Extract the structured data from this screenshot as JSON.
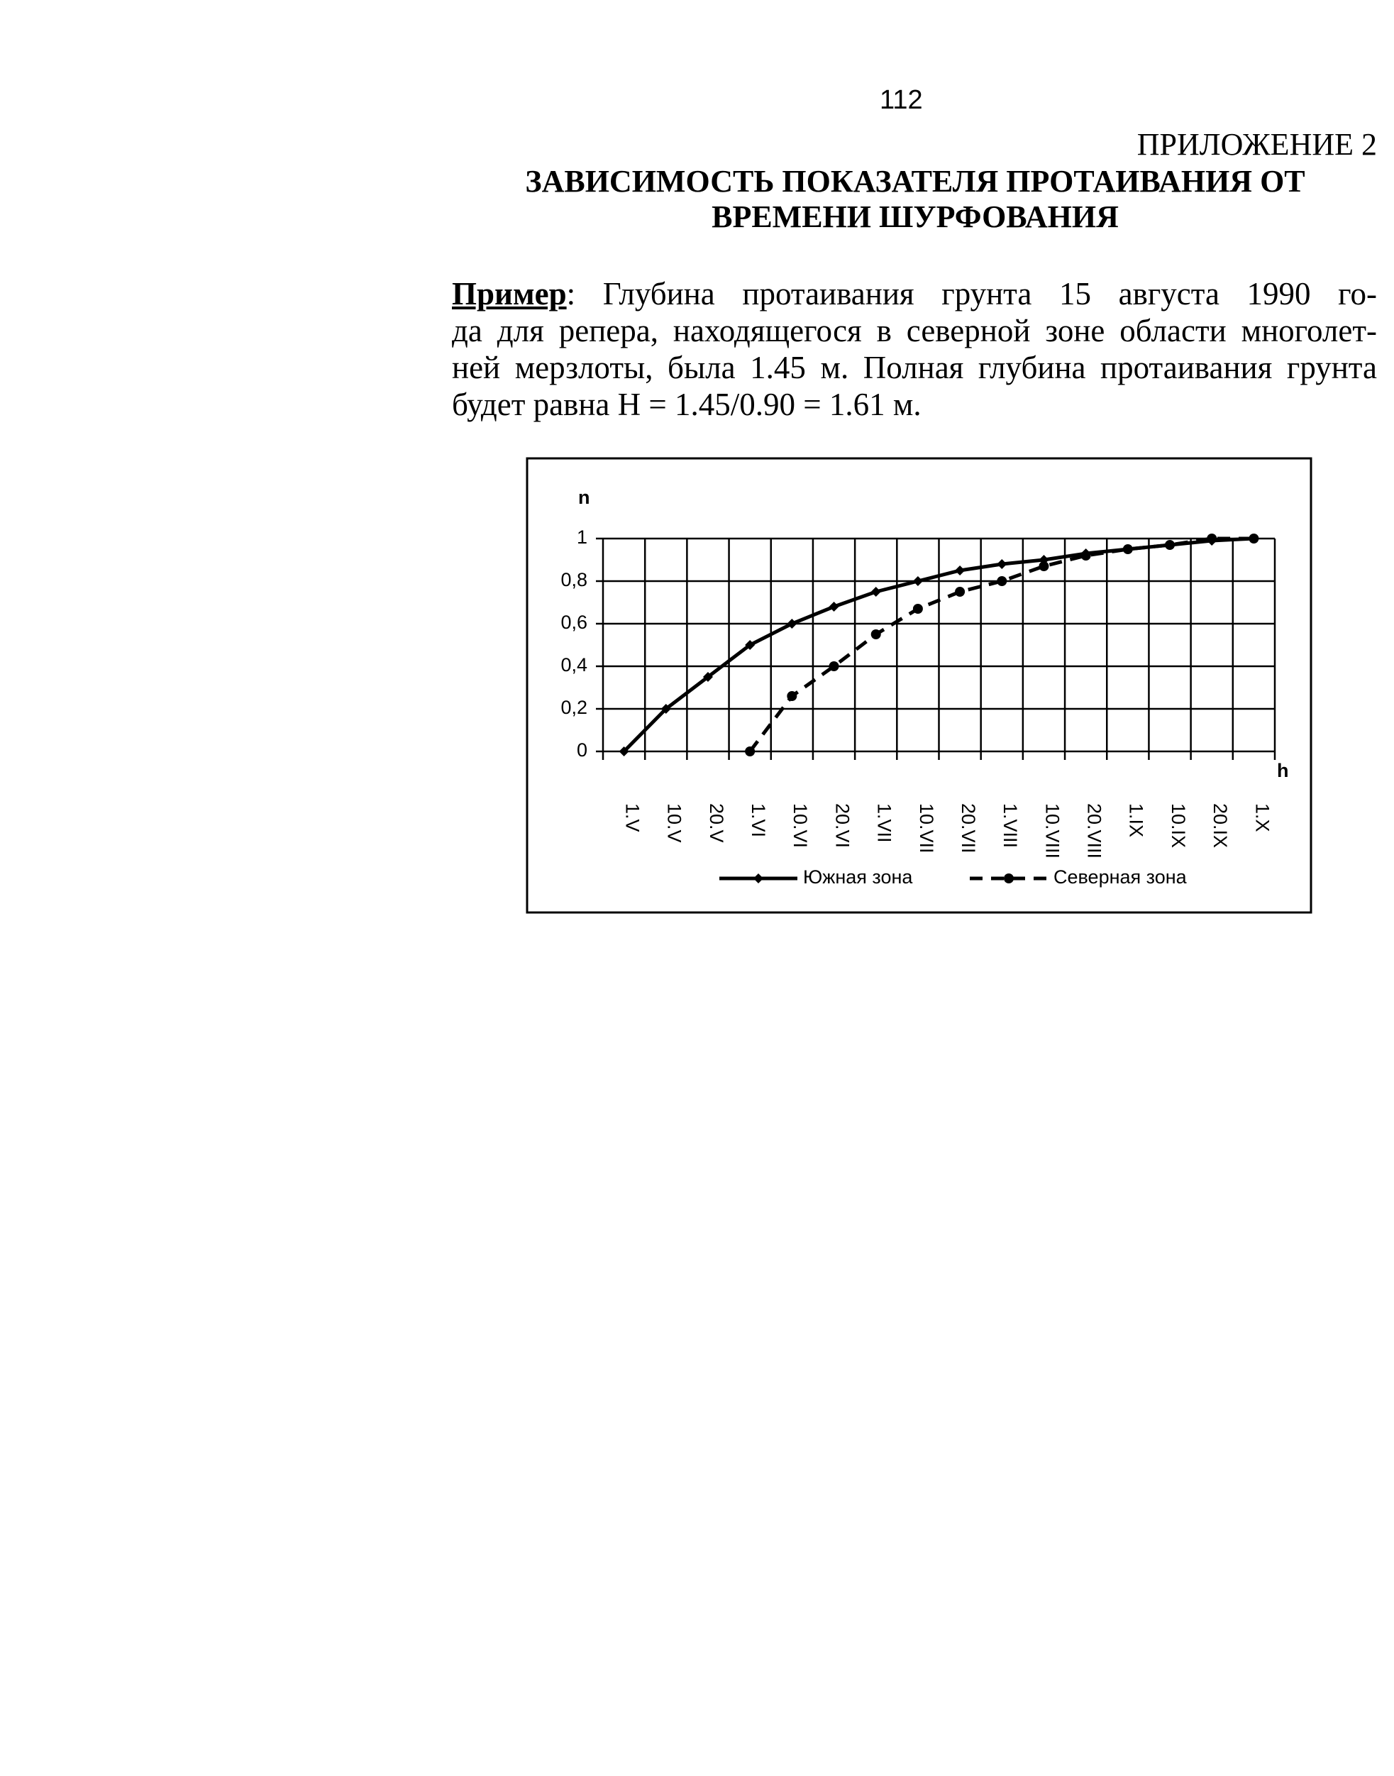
{
  "page_number": "112",
  "appendix": "ПРИЛОЖЕНИЕ 2",
  "title": [
    "ЗАВИСИМОСТЬ ПОКАЗАТЕЛЯ ПРОТАИВАНИЯ ОТ",
    "ВРЕМЕНИ ШУРФОВАНИЯ"
  ],
  "example": {
    "lead": "Пример",
    "lines": [
      ": Глубина протаивания грунта 15 августа 1990 го-",
      "да для репера, находящегося в северной зоне области многолет-",
      "ней мерзлоты, была 1.45 м. Полная глубина протаивания грунта",
      "будет равна H = 1.45/0.90 = 1.61 м."
    ]
  },
  "chart_data": {
    "type": "line",
    "y_label": "n",
    "x_label": "h",
    "categories": [
      "1.V",
      "10.V",
      "20.V",
      "1.VI",
      "10.VI",
      "20.VI",
      "1.VII",
      "10.VII",
      "20.VII",
      "1.VIII",
      "10.VIII",
      "20.VIII",
      "1.IX",
      "10.IX",
      "20.IX",
      "1.X"
    ],
    "series": [
      {
        "name": "Южная зона",
        "color": "#000000",
        "dashed": false,
        "marker": "diamond",
        "values": [
          0,
          0.2,
          0.35,
          0.5,
          0.6,
          0.68,
          0.75,
          0.8,
          0.85,
          0.88,
          0.9,
          0.93,
          0.95,
          0.97,
          0.99,
          1
        ]
      },
      {
        "name": "Северная зона",
        "color": "#000000",
        "dashed": true,
        "marker": "circle",
        "values": [
          null,
          null,
          null,
          0,
          0.26,
          0.4,
          0.55,
          0.67,
          0.75,
          0.8,
          0.87,
          0.92,
          0.95,
          0.97,
          1,
          1
        ]
      }
    ],
    "ylim": [
      0,
      1
    ],
    "yticks": [
      0,
      {
        "value": 0.2,
        "label": "0,2"
      },
      {
        "value": 0.4,
        "label": "0,4"
      },
      {
        "value": 0.6,
        "label": "0,6"
      },
      {
        "value": 0.8,
        "label": "0,8"
      },
      1
    ],
    "grid": true
  }
}
